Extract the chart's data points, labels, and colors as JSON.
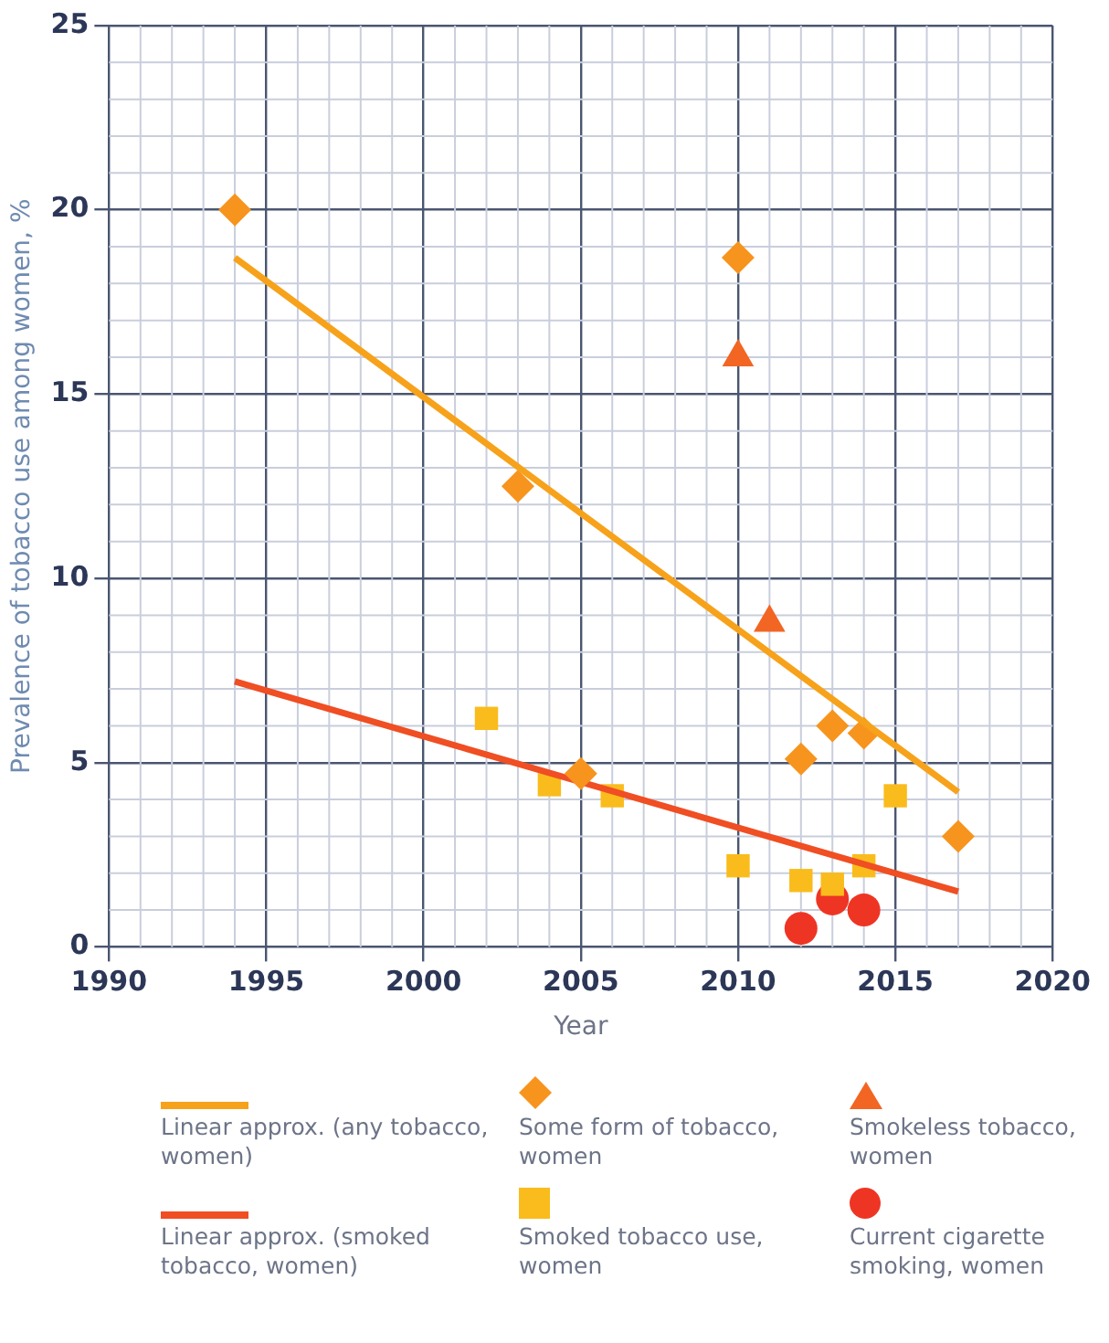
{
  "chart_data": {
    "type": "scatter",
    "xlabel": "Year",
    "ylabel": "Prevalence of tobacco use among women, %",
    "xlim": [
      1990,
      2020
    ],
    "xticks": [
      1990,
      1995,
      2000,
      2005,
      2010,
      2015,
      2020
    ],
    "ylim": [
      0,
      25
    ],
    "yticks": [
      0,
      5,
      10,
      15,
      20,
      25
    ],
    "grid": true,
    "legend": "bottom",
    "series": [
      {
        "name": "Linear approx. (any tobacco, women)",
        "type": "line",
        "color": "#f7a21b",
        "marker": "none",
        "x": [
          1994,
          2017
        ],
        "values": [
          18.7,
          4.2
        ]
      },
      {
        "name": "Some form of tobacco, women",
        "type": "scatter",
        "color": "#f7941d",
        "marker": "diamond",
        "x": [
          1994,
          2003,
          2005,
          2010,
          2012,
          2013,
          2014,
          2017
        ],
        "values": [
          20,
          12.5,
          4.7,
          18.7,
          5.1,
          6.0,
          5.8,
          3.0
        ]
      },
      {
        "name": "Smokeless tobacco, women",
        "type": "scatter",
        "color": "#f26522",
        "marker": "triangle",
        "x": [
          2010,
          2011
        ],
        "values": [
          16.0,
          8.8
        ]
      },
      {
        "name": "Linear approx. (smoked tobacco, women)",
        "type": "line",
        "color": "#f04e23",
        "marker": "none",
        "x": [
          1994,
          2017
        ],
        "values": [
          7.2,
          1.5
        ]
      },
      {
        "name": "Smoked tobacco use, women",
        "type": "scatter",
        "color": "#f9bc1c",
        "marker": "square",
        "x": [
          2002,
          2004,
          2006,
          2010,
          2012,
          2013,
          2014,
          2015
        ],
        "values": [
          6.2,
          4.4,
          4.1,
          2.2,
          1.8,
          1.7,
          2.2,
          4.1
        ]
      },
      {
        "name": "Current cigarette smoking, women",
        "type": "scatter",
        "color": "#ee3524",
        "marker": "circle",
        "x": [
          2012,
          2013,
          2014
        ],
        "values": [
          0.5,
          1.3,
          1.0
        ]
      }
    ]
  }
}
